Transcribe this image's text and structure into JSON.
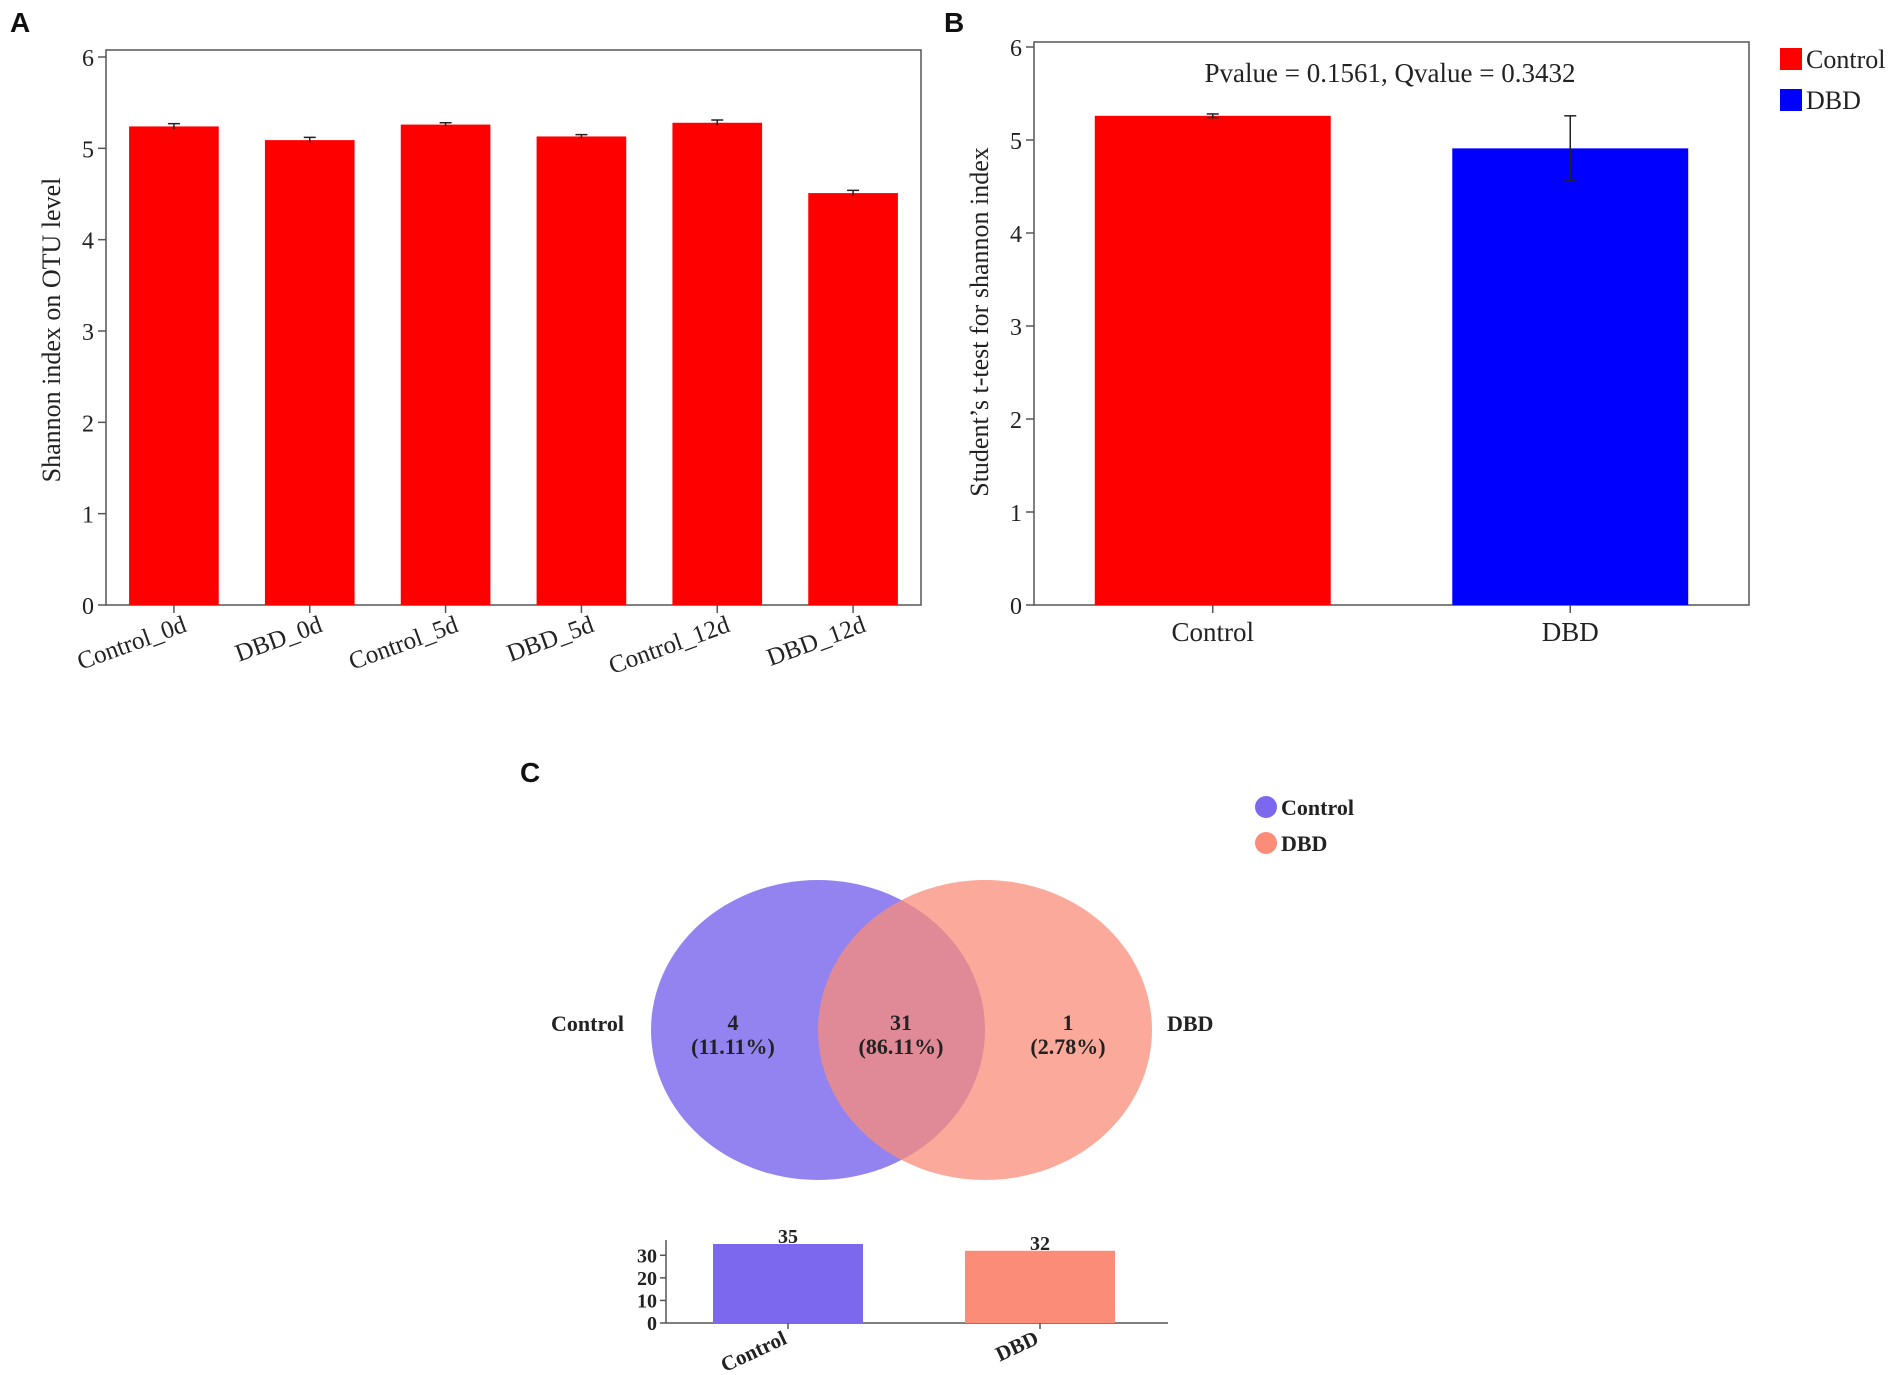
{
  "panels": {
    "a_label": "A",
    "b_label": "B",
    "c_label": "C"
  },
  "colors": {
    "control_red": "#ff0000",
    "dbd_blue": "#0000ff",
    "venn_control": "#7b68ee",
    "venn_dbd": "#fa8c78"
  },
  "chart_data": [
    {
      "id": "A",
      "type": "bar",
      "ylabel": "Shannon index on OTU level",
      "xlabel": "",
      "ylim": [
        0,
        6
      ],
      "yticks": [
        0,
        1,
        2,
        3,
        4,
        5,
        6
      ],
      "categories": [
        "Control_0d",
        "DBD_0d",
        "Control_5d",
        "DBD_5d",
        "Control_12d",
        "DBD_12d"
      ],
      "values": [
        5.24,
        5.09,
        5.26,
        5.13,
        5.28,
        4.51
      ],
      "errors": [
        0.03,
        0.03,
        0.02,
        0.02,
        0.03,
        0.03
      ],
      "color": "#ff0000"
    },
    {
      "id": "B",
      "type": "bar",
      "title": "Pvalue = 0.1561, Qvalue = 0.3432",
      "ylabel": "Student’s t-test for shannon index",
      "xlabel": "",
      "ylim": [
        0,
        6
      ],
      "yticks": [
        0,
        1,
        2,
        3,
        4,
        5,
        6
      ],
      "categories": [
        "Control",
        "DBD"
      ],
      "values": [
        5.26,
        4.91
      ],
      "errors": [
        0.02,
        0.35
      ],
      "colors": [
        "#ff0000",
        "#0000ff"
      ],
      "legend": [
        "Control",
        "DBD"
      ],
      "legend_position": "top-right"
    },
    {
      "id": "C",
      "type": "venn",
      "sets": [
        "Control",
        "DBD"
      ],
      "legend": [
        "Control",
        "DBD"
      ],
      "regions": [
        {
          "label": "4",
          "pct": "(11.11%)"
        },
        {
          "label": "31",
          "pct": "(86.11%)"
        },
        {
          "label": "1",
          "pct": "(2.78%)"
        }
      ],
      "totals": {
        "type": "bar",
        "categories": [
          "Control",
          "DBD"
        ],
        "values": [
          35,
          32
        ],
        "ylim": [
          0,
          35
        ],
        "yticks": [
          0,
          10,
          20,
          30
        ]
      }
    }
  ]
}
